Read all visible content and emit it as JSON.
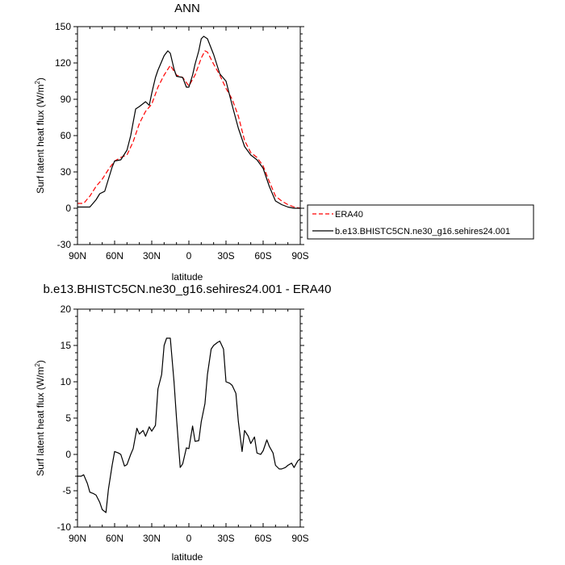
{
  "chart_data": [
    {
      "type": "line",
      "title": "ANN",
      "xlabel": "latitude",
      "ylabel": "Surf latent heat flux (W/m",
      "ylabel_sup": "2",
      "ylabel_end": ")",
      "xlim": [
        -90,
        90
      ],
      "ylim": [
        -30,
        150
      ],
      "xticks": [
        -90,
        -60,
        -30,
        0,
        30,
        60,
        90
      ],
      "xtick_labels": [
        "90N",
        "60N",
        "30N",
        "0",
        "30S",
        "60S",
        "90S"
      ],
      "yticks": [
        -30,
        0,
        30,
        60,
        90,
        120,
        150
      ],
      "ytick_labels": [
        "-30",
        "0",
        "30",
        "60",
        "90",
        "120",
        "150"
      ],
      "legend_position": "right-outside",
      "series": [
        {
          "name": "ERA40",
          "color": "#ff0000",
          "dash": "dashed",
          "x": [
            -90,
            -85,
            -80,
            -75,
            -70,
            -65,
            -60,
            -55,
            -50,
            -45,
            -40,
            -35,
            -30,
            -25,
            -20,
            -15,
            -10,
            -5,
            0,
            5,
            10,
            13,
            15,
            20,
            25,
            30,
            35,
            40,
            45,
            50,
            55,
            60,
            65,
            70,
            75,
            80,
            85,
            90
          ],
          "y": [
            4,
            4,
            10,
            18,
            24,
            32,
            39,
            42,
            44,
            55,
            70,
            80,
            86,
            100,
            110,
            118,
            110,
            108,
            101,
            110,
            124,
            130,
            129,
            119,
            110,
            99,
            90,
            76,
            56,
            46,
            42,
            35,
            22,
            10,
            6,
            3,
            1,
            0
          ]
        },
        {
          "name": "b.e13.BHISTC5CN.ne30_g16.sehires24.001",
          "color": "#000000",
          "dash": "solid",
          "x": [
            -90,
            -85,
            -80,
            -75,
            -72,
            -68,
            -65,
            -62,
            -60,
            -55,
            -50,
            -47,
            -43,
            -40,
            -35,
            -32,
            -30,
            -27,
            -25,
            -20,
            -17,
            -15,
            -12,
            -10,
            -5,
            -2,
            0,
            3,
            5,
            8,
            10,
            12,
            15,
            20,
            25,
            30,
            35,
            40,
            45,
            50,
            55,
            60,
            65,
            70,
            75,
            80,
            85,
            90
          ],
          "y": [
            1,
            1,
            1,
            7,
            12,
            14,
            24,
            34,
            39,
            40,
            48,
            60,
            82,
            84,
            88,
            85,
            95,
            108,
            114,
            126,
            130,
            128,
            115,
            109,
            108,
            100,
            100,
            110,
            119,
            130,
            140,
            142,
            140,
            127,
            111,
            105,
            85,
            66,
            51,
            44,
            40,
            33,
            18,
            6,
            3,
            1,
            0,
            0
          ]
        }
      ]
    },
    {
      "type": "line",
      "title": "b.e13.BHISTC5CN.ne30_g16.sehires24.001 - ERA40",
      "xlabel": "latitude",
      "ylabel": "Surf latent heat flux (W/m",
      "ylabel_sup": "2",
      "ylabel_end": ")",
      "xlim": [
        -90,
        90
      ],
      "ylim": [
        -10,
        20
      ],
      "xticks": [
        -90,
        -60,
        -30,
        0,
        30,
        60,
        90
      ],
      "xtick_labels": [
        "90N",
        "60N",
        "30N",
        "0",
        "30S",
        "60S",
        "90S"
      ],
      "yticks": [
        -10,
        -5,
        0,
        5,
        10,
        15,
        20
      ],
      "ytick_labels": [
        "-10",
        "-5",
        "0",
        "5",
        "10",
        "15",
        "20"
      ],
      "series": [
        {
          "color": "#000000",
          "dash": "solid",
          "x": [
            -90,
            -87,
            -85,
            -82,
            -80,
            -77,
            -75,
            -72,
            -70,
            -67,
            -65,
            -62,
            -60,
            -57,
            -55,
            -52,
            -50,
            -47,
            -45,
            -42,
            -40,
            -37,
            -35,
            -32,
            -30,
            -27,
            -25,
            -22,
            -20,
            -18,
            -15,
            -12,
            -10,
            -7,
            -5,
            -2,
            0,
            3,
            5,
            8,
            10,
            13,
            15,
            18,
            20,
            23,
            25,
            28,
            30,
            33,
            35,
            38,
            40,
            43,
            45,
            48,
            50,
            53,
            55,
            58,
            60,
            63,
            65,
            68,
            70,
            73,
            75,
            78,
            80,
            83,
            85,
            88,
            90
          ],
          "y": [
            -3,
            -3,
            -2.8,
            -4,
            -5.2,
            -5.4,
            -5.6,
            -6.6,
            -7.6,
            -8,
            -4.8,
            -1.5,
            0.4,
            0.2,
            0,
            -1.6,
            -1.4,
            0,
            0.8,
            3.6,
            2.8,
            3.3,
            2.5,
            3.8,
            3.2,
            4,
            9,
            11,
            15,
            16,
            16,
            10,
            5,
            -1.8,
            -1.3,
            0.9,
            0.8,
            3.9,
            1.8,
            1.9,
            4.5,
            7,
            11,
            14.5,
            15,
            15.4,
            15.6,
            14.5,
            10,
            9.8,
            9.5,
            8.4,
            4.5,
            0.4,
            3.3,
            2.5,
            1.5,
            2.4,
            0.2,
            0,
            0.5,
            2,
            1.1,
            0.2,
            -1.5,
            -2,
            -2,
            -1.8,
            -1.5,
            -1.2,
            -1.8,
            -0.9,
            -0.6
          ]
        }
      ]
    }
  ]
}
